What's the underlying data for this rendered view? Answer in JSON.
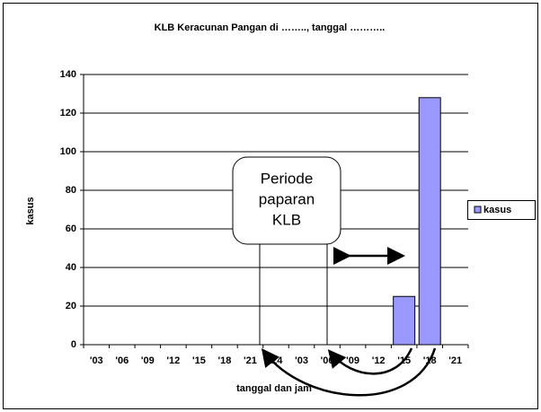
{
  "chart_data": {
    "type": "bar",
    "title": "KLB Keracunan Pangan di …….., tanggal ………..",
    "x_label": "tanggal dan jam",
    "y_label": "kasus",
    "categories": [
      "'03",
      "'06",
      "'09",
      "'12",
      "'15",
      "'18",
      "'21",
      "'24",
      "'03",
      "'06",
      "'09",
      "'12",
      "'15",
      "'18",
      "'21"
    ],
    "series": [
      {
        "name": "kasus",
        "color": "#9999ff",
        "values": [
          null,
          null,
          null,
          null,
          null,
          null,
          null,
          null,
          null,
          null,
          null,
          null,
          25,
          128,
          null
        ]
      }
    ],
    "ylim": [
      0,
      140
    ],
    "yticks": [
      0,
      20,
      40,
      60,
      80,
      100,
      120,
      140
    ],
    "grid": true,
    "legend": "right",
    "annotations": [
      "Periode",
      "paparan",
      "KLB"
    ]
  }
}
